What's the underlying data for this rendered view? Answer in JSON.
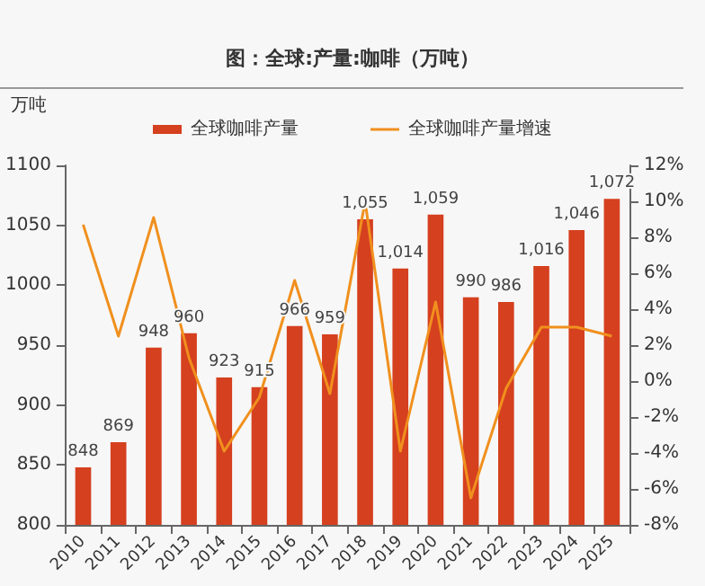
{
  "chart_data": {
    "type": "bar",
    "title": "图：全球:产量:咖啡（万吨）",
    "ylabel": "万吨",
    "categories": [
      "2010",
      "2011",
      "2012",
      "2013",
      "2014",
      "2015",
      "2016",
      "2017",
      "2018",
      "2019",
      "2020",
      "2021",
      "2022",
      "2023",
      "2024",
      "2025"
    ],
    "series": [
      {
        "name": "全球咖啡产量",
        "color": "#d5401f",
        "values": [
          848,
          869,
          948,
          960,
          923,
          915,
          966,
          959,
          1055,
          1014,
          1059,
          990,
          986,
          1016,
          1046,
          1072
        ],
        "value_labels": [
          "848",
          "869",
          "948",
          "960",
          "923",
          "915",
          "966",
          "959",
          "1,055",
          "1,014",
          "1,059",
          "990",
          "986",
          "1,016",
          "1,046",
          "1,072"
        ]
      },
      {
        "name": "全球咖啡产量增速",
        "type": "line",
        "axis": "y2",
        "color": "#f0901e",
        "values": [
          8.7,
          2.5,
          9.1,
          1.3,
          -3.9,
          -0.9,
          5.6,
          -0.7,
          10.0,
          -3.9,
          4.4,
          -6.5,
          -0.4,
          3.0,
          3.0,
          2.5
        ]
      }
    ],
    "ylim": [
      800,
      1100
    ],
    "yticks": [
      800,
      850,
      900,
      950,
      1000,
      1050,
      1100
    ],
    "y2lim": [
      -8,
      12
    ],
    "y2ticks": [
      {
        "value": -8,
        "label": "-8%"
      },
      {
        "value": -6,
        "label": "-6%"
      },
      {
        "value": -4,
        "label": "-4%"
      },
      {
        "value": -2,
        "label": "-2%"
      },
      {
        "value": 0,
        "label": "0%"
      },
      {
        "value": 2,
        "label": "2%"
      },
      {
        "value": 4,
        "label": "4%"
      },
      {
        "value": 6,
        "label": "6%"
      },
      {
        "value": 8,
        "label": "8%"
      },
      {
        "value": 10,
        "label": "10%"
      },
      {
        "value": 12,
        "label": "12%"
      }
    ],
    "legend": "top",
    "grid": false,
    "marker": "none",
    "line_style": "solid"
  }
}
